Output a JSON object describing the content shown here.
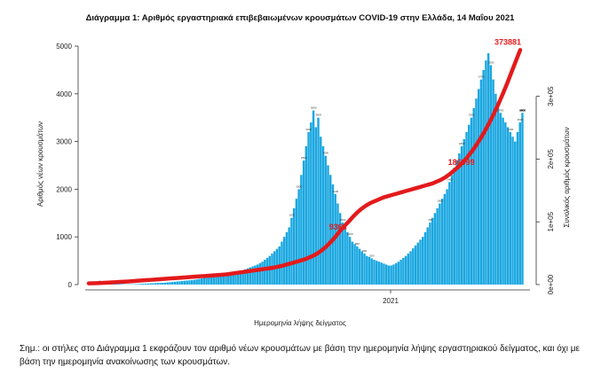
{
  "chart_data": {
    "type": "bar",
    "title": "Διάγραμμα 1: Αριθμός εργαστηριακά επιβεβαιωμένων κρουσμάτων COVID-19 στην Ελλάδα, 14 Μαΐου 2021",
    "xlabel": "Ημερομηνία λήψης δείγματος",
    "ylabel": "Αριθμός νέων κρουσμάτων",
    "y2label": "Συνολικός αριθμός κρουσμάτων",
    "ylim": [
      0,
      5000
    ],
    "y2lim": [
      0,
      380000
    ],
    "yticks": [
      "0",
      "1000",
      "2000",
      "3000",
      "4000",
      "5000"
    ],
    "y2ticks": [
      "0e+00",
      "1e+05",
      "2e+05",
      "3e+05"
    ],
    "xtick_label": "2021",
    "series": [
      {
        "type": "bar",
        "color": "#1aa7e0",
        "values": [
          20,
          30,
          40,
          60,
          80,
          70,
          50,
          40,
          35,
          25,
          20,
          15,
          12,
          10,
          8,
          5,
          5,
          6,
          8,
          10,
          12,
          15,
          18,
          20,
          22,
          25,
          28,
          30,
          33,
          35,
          38,
          40,
          45,
          50,
          55,
          60,
          65,
          70,
          75,
          80,
          85,
          90,
          95,
          100,
          110,
          120,
          130,
          140,
          150,
          160,
          170,
          180,
          190,
          200,
          210,
          220,
          230,
          240,
          250,
          260,
          270,
          280,
          290,
          300,
          320,
          340,
          360,
          380,
          400,
          420,
          450,
          480,
          520,
          560,
          600,
          650,
          700,
          750,
          800,
          900,
          1000,
          1100,
          1200,
          1400,
          1600,
          1800,
          2000,
          2300,
          2600,
          2900,
          3200,
          3400,
          3650,
          3300,
          3500,
          3100,
          2900,
          2700,
          2500,
          2300,
          2100,
          1900,
          1700,
          1500,
          1300,
          1200,
          1100,
          1000,
          900,
          850,
          800,
          750,
          700,
          650,
          600,
          580,
          550,
          520,
          500,
          480,
          460,
          440,
          420,
          400,
          400,
          420,
          450,
          480,
          520,
          560,
          600,
          650,
          700,
          760,
          820,
          880,
          940,
          1000,
          1100,
          1200,
          1300,
          1400,
          1500,
          1600,
          1700,
          1800,
          1900,
          2000,
          2150,
          2300,
          2450,
          2600,
          2750,
          2900,
          3050,
          3200,
          3350,
          3500,
          3700,
          3900,
          4100,
          4300,
          4500,
          4700,
          4850,
          4600,
          4300,
          4000,
          3800,
          3600,
          3500,
          3400,
          3300,
          3200,
          3100,
          3000,
          3200,
          3400,
          3600
        ],
        "labels": [
          "1200",
          "1800",
          "2500",
          "3000",
          "3650",
          "3500",
          "2900",
          "2100",
          "1500",
          "1100",
          "800",
          "600",
          "500",
          "700",
          "1000",
          "1400",
          "1800",
          "2300",
          "2750",
          "3200",
          "3700",
          "4100",
          "4500",
          "4850",
          "4300",
          "3800",
          "3500",
          "3300",
          "3100",
          "3400"
        ]
      },
      {
        "type": "line",
        "color": "#e31a1c",
        "values": [
          2000,
          2100,
          2300,
          2600,
          3000,
          3400,
          3800,
          4200,
          4600,
          5000,
          5500,
          6000,
          6500,
          7000,
          7500,
          8000,
          8500,
          9000,
          9500,
          10000,
          10500,
          11000,
          11500,
          12000,
          12500,
          13000,
          13500,
          14000,
          14500,
          15000,
          15500,
          16000,
          17000,
          18000,
          19000,
          20000,
          21000,
          22000,
          23000,
          24000,
          25000,
          26000,
          27000,
          28500,
          30000,
          32000,
          34000,
          36000,
          38000,
          40000,
          43000,
          46000,
          50000,
          55000,
          61000,
          68000,
          76000,
          85000,
          93000,
          100000,
          108000,
          115000,
          121000,
          126000,
          130000,
          133000,
          136000,
          139000,
          141000,
          143000,
          145000,
          147000,
          149000,
          151000,
          153000,
          155000,
          157000,
          159000,
          161000,
          164000,
          167000,
          171000,
          176000,
          182000,
          188000,
          195000,
          203000,
          212000,
          222000,
          233000,
          245000,
          258000,
          272000,
          287000,
          303000,
          320000,
          338000,
          356000,
          373881
        ]
      }
    ],
    "annotations": [
      "9363",
      "186999",
      "373881"
    ]
  },
  "note": "Σημ.: οι στήλες στο Διάγραμμα 1 εκφράζουν τον αριθμό νέων κρουσμάτων με βάση την ημερομηνία λήψης εργαστηριακού δείγματος, και όχι με βάση την ημερομηνία ανακοίνωσης των κρουσμάτων."
}
